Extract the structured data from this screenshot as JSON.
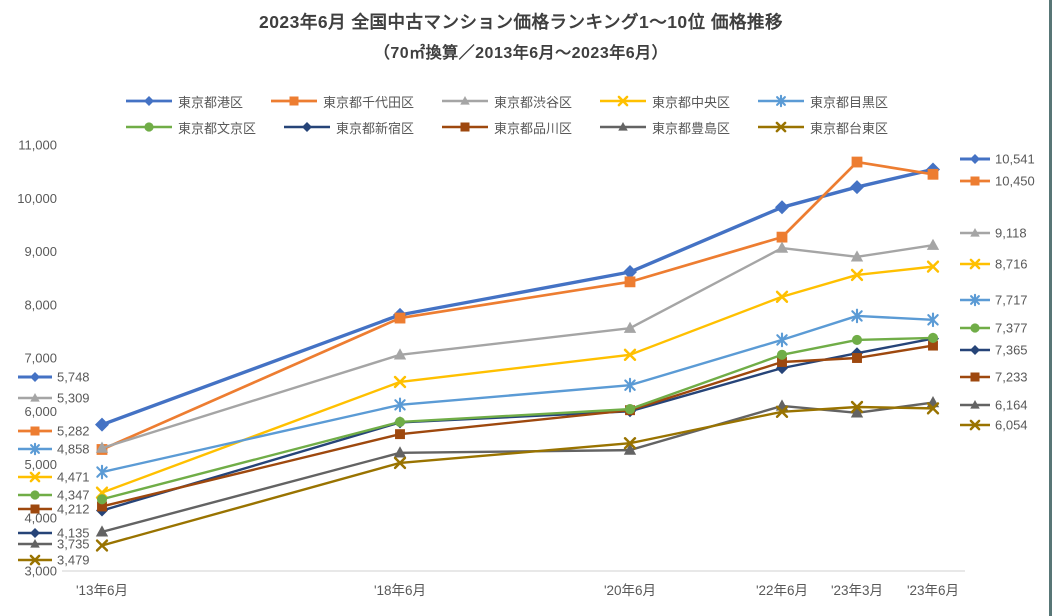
{
  "window": {
    "right_edge_color": "#587676",
    "background": "#ffffff"
  },
  "chart_data": {
    "type": "line",
    "title": "2023年6月 全国中古マンション価格ランキング1～10位 価格推移",
    "subtitle": "（70㎡換算／2013年6月～2023年6月）",
    "title_color": "#3f3f3f",
    "text_color": "#595959",
    "axis_line_color": "#d9d9d9",
    "grid": false,
    "legend_position": "top",
    "x_categories": [
      "'13年6月",
      "'18年6月",
      "'20年6月",
      "'22年6月",
      "'23年3月",
      "'23年6月"
    ],
    "ylim": [
      3000,
      11000
    ],
    "ytick_step": 1000,
    "ytick_labels": [
      "3,000",
      "4,000",
      "5,000",
      "6,000",
      "7,000",
      "8,000",
      "9,000",
      "10,000",
      "11,000"
    ],
    "series": [
      {
        "name": "東京都港区",
        "color": "#4472C4",
        "marker": "diamond",
        "values": [
          5748,
          7810,
          8615,
          9830,
          10210,
          10541
        ],
        "start_label": "5,748",
        "end_label": "10,541"
      },
      {
        "name": "東京都千代田区",
        "color": "#ED7D31",
        "marker": "square",
        "values": [
          5282,
          7750,
          8430,
          9270,
          10680,
          10450
        ],
        "start_label": "5,282",
        "end_label": "10,450"
      },
      {
        "name": "東京都渋谷区",
        "color": "#A5A5A5",
        "marker": "triangle",
        "values": [
          5309,
          7060,
          7560,
          9065,
          8900,
          9118
        ],
        "start_label": "5,309",
        "end_label": "9,118"
      },
      {
        "name": "東京都中央区",
        "color": "#FFC000",
        "marker": "x",
        "values": [
          4471,
          6550,
          7060,
          8150,
          8560,
          8716
        ],
        "start_label": "4,471",
        "end_label": "8,716"
      },
      {
        "name": "東京都目黒区",
        "color": "#5B9BD5",
        "marker": "asterisk",
        "values": [
          4858,
          6120,
          6490,
          7340,
          7790,
          7717
        ],
        "start_label": "4,858",
        "end_label": "7,717"
      },
      {
        "name": "東京都文京区",
        "color": "#70AD47",
        "marker": "circle",
        "values": [
          4347,
          5800,
          6040,
          7060,
          7340,
          7377
        ],
        "start_label": "4,347",
        "end_label": "7,377"
      },
      {
        "name": "東京都新宿区",
        "color": "#264478",
        "marker": "diamond",
        "values": [
          4135,
          5790,
          6000,
          6810,
          7090,
          7365
        ],
        "start_label": "4,135",
        "end_label": "7,365"
      },
      {
        "name": "東京都品川区",
        "color": "#9E480E",
        "marker": "square",
        "values": [
          4212,
          5570,
          6020,
          6925,
          7000,
          7233
        ],
        "start_label": "4,212",
        "end_label": "7,233"
      },
      {
        "name": "東京都豊島区",
        "color": "#636363",
        "marker": "triangle",
        "values": [
          3735,
          5220,
          5270,
          6100,
          5970,
          6164
        ],
        "start_label": "3,735",
        "end_label": "6,164"
      },
      {
        "name": "東京都台東区",
        "color": "#997300",
        "marker": "x",
        "values": [
          3479,
          5030,
          5400,
          5990,
          6080,
          6054
        ],
        "start_label": "3,479",
        "end_label": "6,054"
      }
    ]
  }
}
